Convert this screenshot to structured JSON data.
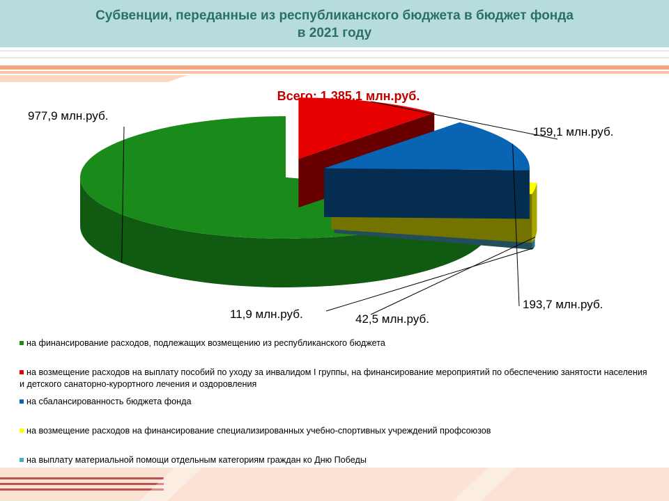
{
  "header": {
    "title_line1": "Субвенции, переданные из республиканского бюджета в бюджет фонда",
    "title_line2": "в 2021 году"
  },
  "total_label": "Всего: 1 385,1 млн.руб.",
  "colors": {
    "green": "#1a8a1a",
    "red": "#e60000",
    "blue": "#0a64b4",
    "yellow": "#ffff00",
    "teal": "#4bacc6",
    "title": "#2b6f6b",
    "total": "#c00000",
    "header_bg": "#b7dcdc"
  },
  "chart_data": {
    "type": "pie",
    "title": "Всего: 1 385,1 млн.руб.",
    "unit": "млн.руб.",
    "slices": [
      {
        "label": "на финансирование расходов, подлежащих возмещению из республиканского бюджета",
        "value": 977.9,
        "data_label": "977,9 млн.руб.",
        "color": "#1a8a1a"
      },
      {
        "label": "на возмещение расходов на выплату пособий по уходу за инвалидом I группы, на финансирование мероприятий по обеспечению занятости населения и детского санаторно-курортного лечения и оздоровления",
        "value": 159.1,
        "data_label": "159,1 млн.руб.",
        "color": "#e60000"
      },
      {
        "label": "на сбалансированность бюджета фонда",
        "value": 193.7,
        "data_label": "193,7 млн.руб.",
        "color": "#0a64b4"
      },
      {
        "label": "на возмещение расходов на финансирование специализированных учебно-спортивных учреждений профсоюзов",
        "value": 42.5,
        "data_label": "42,5 млн.руб.",
        "color": "#ffff00"
      },
      {
        "label": "на выплату материальной помощи отдельным категориям граждан ко Дню Победы",
        "value": 11.9,
        "data_label": "11,9 млн.руб.",
        "color": "#4bacc6"
      }
    ],
    "legend_position": "bottom"
  }
}
